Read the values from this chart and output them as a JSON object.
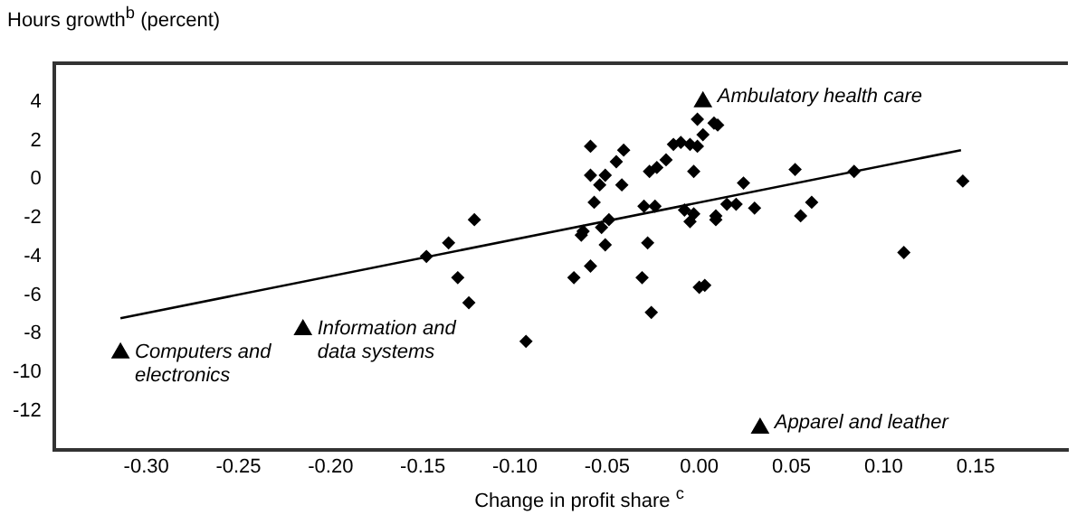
{
  "chart_data": {
    "type": "scatter",
    "ylabel": "Hours growth$^{b}$ (percent)",
    "xlabel": "Change in profit share $^{c}$",
    "xlim": [
      -0.35,
      0.2
    ],
    "xticks": [
      {
        "value": -0.3,
        "label": "-0.30"
      },
      {
        "value": -0.25,
        "label": "-0.25"
      },
      {
        "value": -0.2,
        "label": "-0.20"
      },
      {
        "value": -0.15,
        "label": "-0.15"
      },
      {
        "value": -0.1,
        "label": "-0.10"
      },
      {
        "value": -0.05,
        "label": "-0.05"
      },
      {
        "value": 0,
        "label": "0.00"
      },
      {
        "value": 0.05,
        "label": "0.05"
      },
      {
        "value": 0.1,
        "label": "0.10"
      },
      {
        "value": 0.15,
        "label": "0.15"
      }
    ],
    "ylim": [
      -14,
      6
    ],
    "yticks": [
      -12,
      -10,
      -8,
      -6,
      -4,
      -2,
      0,
      2,
      4
    ],
    "grid": false,
    "legend": false,
    "series": [
      {
        "marker": "diamond",
        "color": "#000000",
        "x": [
          -0.059,
          -0.059,
          -0.054,
          -0.051,
          -0.057,
          -0.045,
          -0.041,
          -0.042,
          -0.063,
          -0.064,
          -0.053,
          -0.049,
          -0.051,
          -0.059,
          -0.068,
          -0.031,
          -0.028,
          -0.026,
          -0.03,
          -0.024,
          -0.027,
          -0.023,
          -0.018,
          -0.014,
          -0.01,
          -0.005,
          -0.001,
          -0.001,
          0.002,
          0.008,
          0.01,
          -0.003,
          -0.008,
          -0.003,
          -0.005,
          0.009,
          0.009,
          0.015,
          0.02,
          0.024,
          0.03,
          0.0,
          0.003,
          0.052,
          0.055,
          0.061,
          0.084,
          0.111,
          0.143,
          -0.148,
          -0.136,
          -0.122,
          -0.131,
          -0.125,
          -0.094
        ],
        "values": [
          1.7,
          0.2,
          -0.3,
          0.2,
          -1.2,
          0.9,
          1.5,
          -0.3,
          -2.7,
          -2.9,
          -2.5,
          -2.1,
          -3.4,
          -4.5,
          -5.1,
          -5.1,
          -3.3,
          -6.9,
          -1.4,
          -1.4,
          0.4,
          0.6,
          1.0,
          1.8,
          1.9,
          1.8,
          1.7,
          3.1,
          2.3,
          2.9,
          2.8,
          0.4,
          -1.6,
          -1.8,
          -2.2,
          -1.9,
          -2.1,
          -1.3,
          -1.3,
          -0.2,
          -1.5,
          -5.6,
          -5.5,
          0.5,
          -1.9,
          -1.2,
          0.4,
          -3.8,
          -0.1,
          -4.0,
          -3.3,
          -2.1,
          -5.1,
          -6.4,
          -8.4
        ]
      },
      {
        "marker": "triangle",
        "color": "#000000",
        "x": [
          -0.314,
          -0.215,
          0.002,
          0.033
        ],
        "values": [
          -9.0,
          -7.8,
          4.0,
          -12.9
        ]
      },
      {
        "type": "line",
        "marker": "none",
        "line_style": "solid",
        "color": "#000000",
        "x": [
          -0.314,
          0.142
        ],
        "values": [
          -7.2,
          1.5
        ]
      }
    ],
    "annotations": [
      {
        "text": "Computers and electronics",
        "x": -0.314,
        "y": -9.0
      },
      {
        "text": "Information and data systems",
        "x": -0.215,
        "y": -7.8
      },
      {
        "text": "Ambulatory health care",
        "x": 0.002,
        "y": 4.0
      },
      {
        "text": "Apparel and leather",
        "x": 0.033,
        "y": -12.9
      }
    ]
  }
}
